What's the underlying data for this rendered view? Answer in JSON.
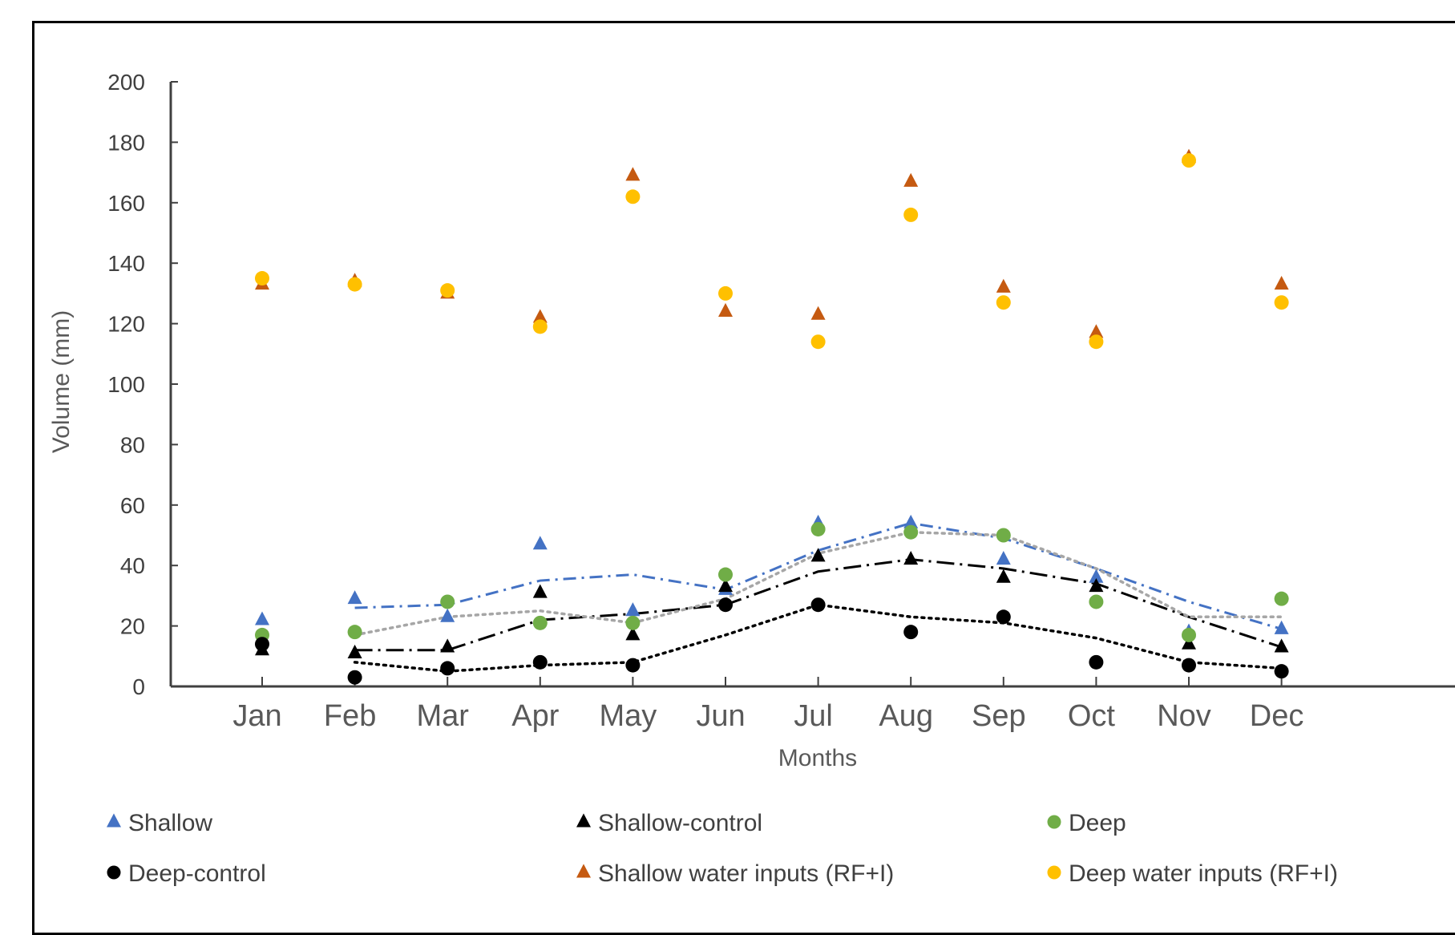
{
  "chart_data": {
    "type": "scatter",
    "title": "",
    "xlabel": "Months",
    "ylabel": "Volume (mm)",
    "ylim": [
      0,
      200
    ],
    "yticks": [
      0,
      20,
      40,
      60,
      80,
      100,
      120,
      140,
      160,
      180,
      200
    ],
    "categories": [
      "Jan",
      "Feb",
      "Mar",
      "Apr",
      "May",
      "Jun",
      "Jul",
      "Aug",
      "Sep",
      "Oct",
      "Nov",
      "Dec"
    ],
    "grid": false,
    "legend_position": "bottom",
    "series": [
      {
        "name": "Shallow",
        "marker": "triangle",
        "color": "#4472c4",
        "values": [
          22,
          29,
          23,
          47,
          25,
          32,
          54,
          54,
          42,
          36,
          18,
          19
        ],
        "trend": {
          "style": "dash-dot",
          "color": "#4472c4",
          "values": [
            null,
            26,
            27,
            35,
            37,
            32,
            45,
            54,
            49,
            39,
            28,
            19
          ]
        }
      },
      {
        "name": "Shallow-control",
        "marker": "triangle",
        "color": "#000000",
        "values": [
          12,
          11,
          13,
          31,
          17,
          33,
          43,
          42,
          36,
          33,
          14,
          13
        ],
        "trend": {
          "style": "long-dash-dot",
          "color": "#000000",
          "values": [
            null,
            12,
            12,
            22,
            24,
            27,
            38,
            42,
            39,
            34,
            23,
            13
          ]
        }
      },
      {
        "name": "Deep",
        "marker": "circle",
        "color": "#70ad47",
        "values": [
          17,
          18,
          28,
          21,
          21,
          37,
          52,
          51,
          50,
          28,
          17,
          29
        ],
        "trend": {
          "style": "dot",
          "color": "#a6a6a6",
          "values": [
            null,
            17,
            23,
            25,
            21,
            29,
            44,
            51,
            50,
            39,
            23,
            23
          ]
        }
      },
      {
        "name": "Deep-control",
        "marker": "circle",
        "color": "#000000",
        "values": [
          14,
          3,
          6,
          8,
          7,
          27,
          27,
          18,
          23,
          8,
          7,
          5
        ],
        "trend": {
          "style": "dot",
          "color": "#000000",
          "values": [
            null,
            8,
            5,
            7,
            8,
            17,
            27,
            23,
            21,
            16,
            8,
            6
          ]
        }
      },
      {
        "name": "Shallow water inputs (RF+I)",
        "marker": "triangle",
        "color": "#c55a11",
        "values": [
          133,
          134,
          130,
          122,
          169,
          124,
          123,
          167,
          132,
          117,
          175,
          133
        ]
      },
      {
        "name": "Deep water inputs (RF+I)",
        "marker": "circle",
        "color": "#ffc000",
        "values": [
          135,
          133,
          131,
          119,
          162,
          130,
          114,
          156,
          127,
          114,
          174,
          127
        ]
      }
    ]
  }
}
